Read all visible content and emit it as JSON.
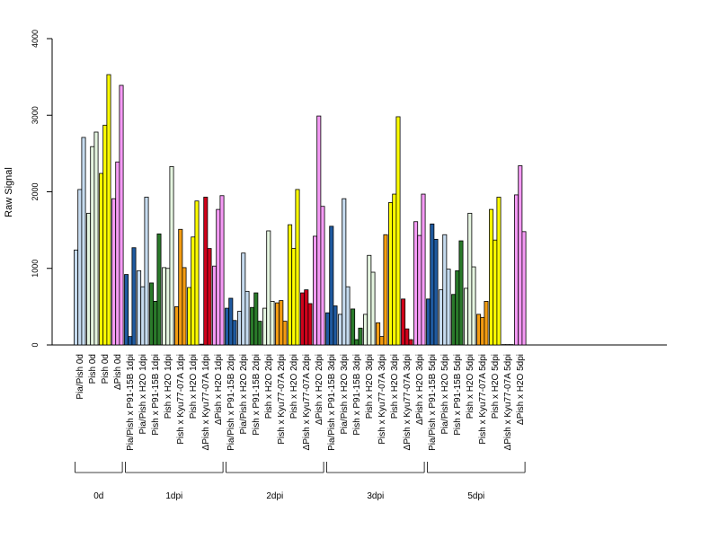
{
  "chart_data": {
    "type": "bar",
    "ylabel": "Raw Signal",
    "ylim": [
      0,
      4000
    ],
    "yticks": [
      0,
      1000,
      2000,
      3000,
      4000
    ],
    "grid": false,
    "categories": [
      "Pia/Pish 0d",
      "Pish 0d",
      "Pish 0d",
      "ΔPish 0d",
      "Pia/Pish x P91-15B 1dpi",
      "Pia/Pish x H2O 1dpi",
      "Pish x P91-15B 1dpi",
      "Pish x H2O 1dpi",
      "Pish x Kyu77-07A 1dpi",
      "Pish x H2O 1dpi",
      "ΔPish x Kyu77-07A 1dpi",
      "ΔPish x H2O 1dpi",
      "Pia/Pish x P91-15B 2dpi",
      "Pia/Pish x H2O 2dpi",
      "Pish x P91-15B 2dpi",
      "Pish x H2O 2dpi",
      "Pish x Kyu77-07A 2dpi",
      "Pish x H2O 2dpi",
      "ΔPish x Kyu77-07A 2dpi",
      "ΔPish x H2O 2dpi",
      "Pia/Pish x P91-15B 3dpi",
      "Pia/Pish x H2O 3dpi",
      "Pish x P91-15B 3dpi",
      "Pish x H2O 3dpi",
      "Pish x Kyu77-07A 3dpi",
      "Pish x H2O 3dpi",
      "ΔPish x Kyu77-07A 3dpi",
      "ΔPish x H2O 3dpi",
      "Pia/Pish x P91-15B 5dpi",
      "Pia/Pish x H2O 5dpi",
      "Pish x P91-15B 5dpi",
      "Pish x H2O 5dpi",
      "Pish x Kyu77-07A 5dpi",
      "Pish x H2O 5dpi",
      "ΔPish x Kyu77-07A 5dpi",
      "ΔPish x H2O 5dpi"
    ],
    "category_colors": [
      "#c6dbef",
      "#e5f5e0",
      "#ffff00",
      "#f59af5",
      "#1f5aa0",
      "#c6dbef",
      "#2a7a2a",
      "#e5f5e0",
      "#f39c12",
      "#ffff00",
      "#d0021b",
      "#f59af5",
      "#1f5aa0",
      "#c6dbef",
      "#2a7a2a",
      "#e5f5e0",
      "#f39c12",
      "#ffff00",
      "#d0021b",
      "#f59af5",
      "#1f5aa0",
      "#c6dbef",
      "#2a7a2a",
      "#e5f5e0",
      "#f39c12",
      "#ffff00",
      "#d0021b",
      "#f59af5",
      "#1f5aa0",
      "#c6dbef",
      "#2a7a2a",
      "#e5f5e0",
      "#f39c12",
      "#ffff00",
      "#d0021b",
      "#f59af5"
    ],
    "values": [
      [
        1240,
        2030,
        2710
      ],
      [
        1720,
        2590,
        2780
      ],
      [
        2240,
        2870,
        3530
      ],
      [
        1910,
        2390,
        3390
      ],
      [
        920,
        110,
        1270
      ],
      [
        970,
        760,
        1930
      ],
      [
        810,
        570,
        1450
      ],
      [
        1010,
        1000,
        2330
      ],
      [
        500,
        1510,
        1010
      ],
      [
        750,
        1410,
        1880
      ],
      [
        10,
        1930,
        1260
      ],
      [
        1030,
        1770,
        1950
      ],
      [
        480,
        610,
        320
      ],
      [
        440,
        1200,
        700
      ],
      [
        490,
        680,
        310
      ],
      [
        480,
        1490,
        570
      ],
      [
        550,
        580,
        310
      ],
      [
        1570,
        1260,
        2030
      ],
      [
        680,
        720,
        540
      ],
      [
        1420,
        2990,
        1810
      ],
      [
        420,
        1550,
        510
      ],
      [
        400,
        1910,
        760
      ],
      [
        470,
        70,
        220
      ],
      [
        400,
        1170,
        950
      ],
      [
        290,
        110,
        1440
      ],
      [
        1860,
        1970,
        2980
      ],
      [
        600,
        210,
        70
      ],
      [
        1610,
        1430,
        1970
      ],
      [
        600,
        1580,
        1380
      ],
      [
        720,
        1440,
        990
      ],
      [
        660,
        970,
        1360
      ],
      [
        740,
        1720,
        1020
      ],
      [
        400,
        360,
        570
      ],
      [
        1770,
        1370,
        1930
      ],
      [
        5,
        5,
        5
      ],
      [
        1960,
        2340,
        1480
      ]
    ],
    "groups": [
      {
        "label": "0d",
        "start": 0,
        "end": 3
      },
      {
        "label": "1dpi",
        "start": 4,
        "end": 11
      },
      {
        "label": "2dpi",
        "start": 12,
        "end": 19
      },
      {
        "label": "3dpi",
        "start": 20,
        "end": 27
      },
      {
        "label": "5dpi",
        "start": 28,
        "end": 35
      }
    ]
  }
}
